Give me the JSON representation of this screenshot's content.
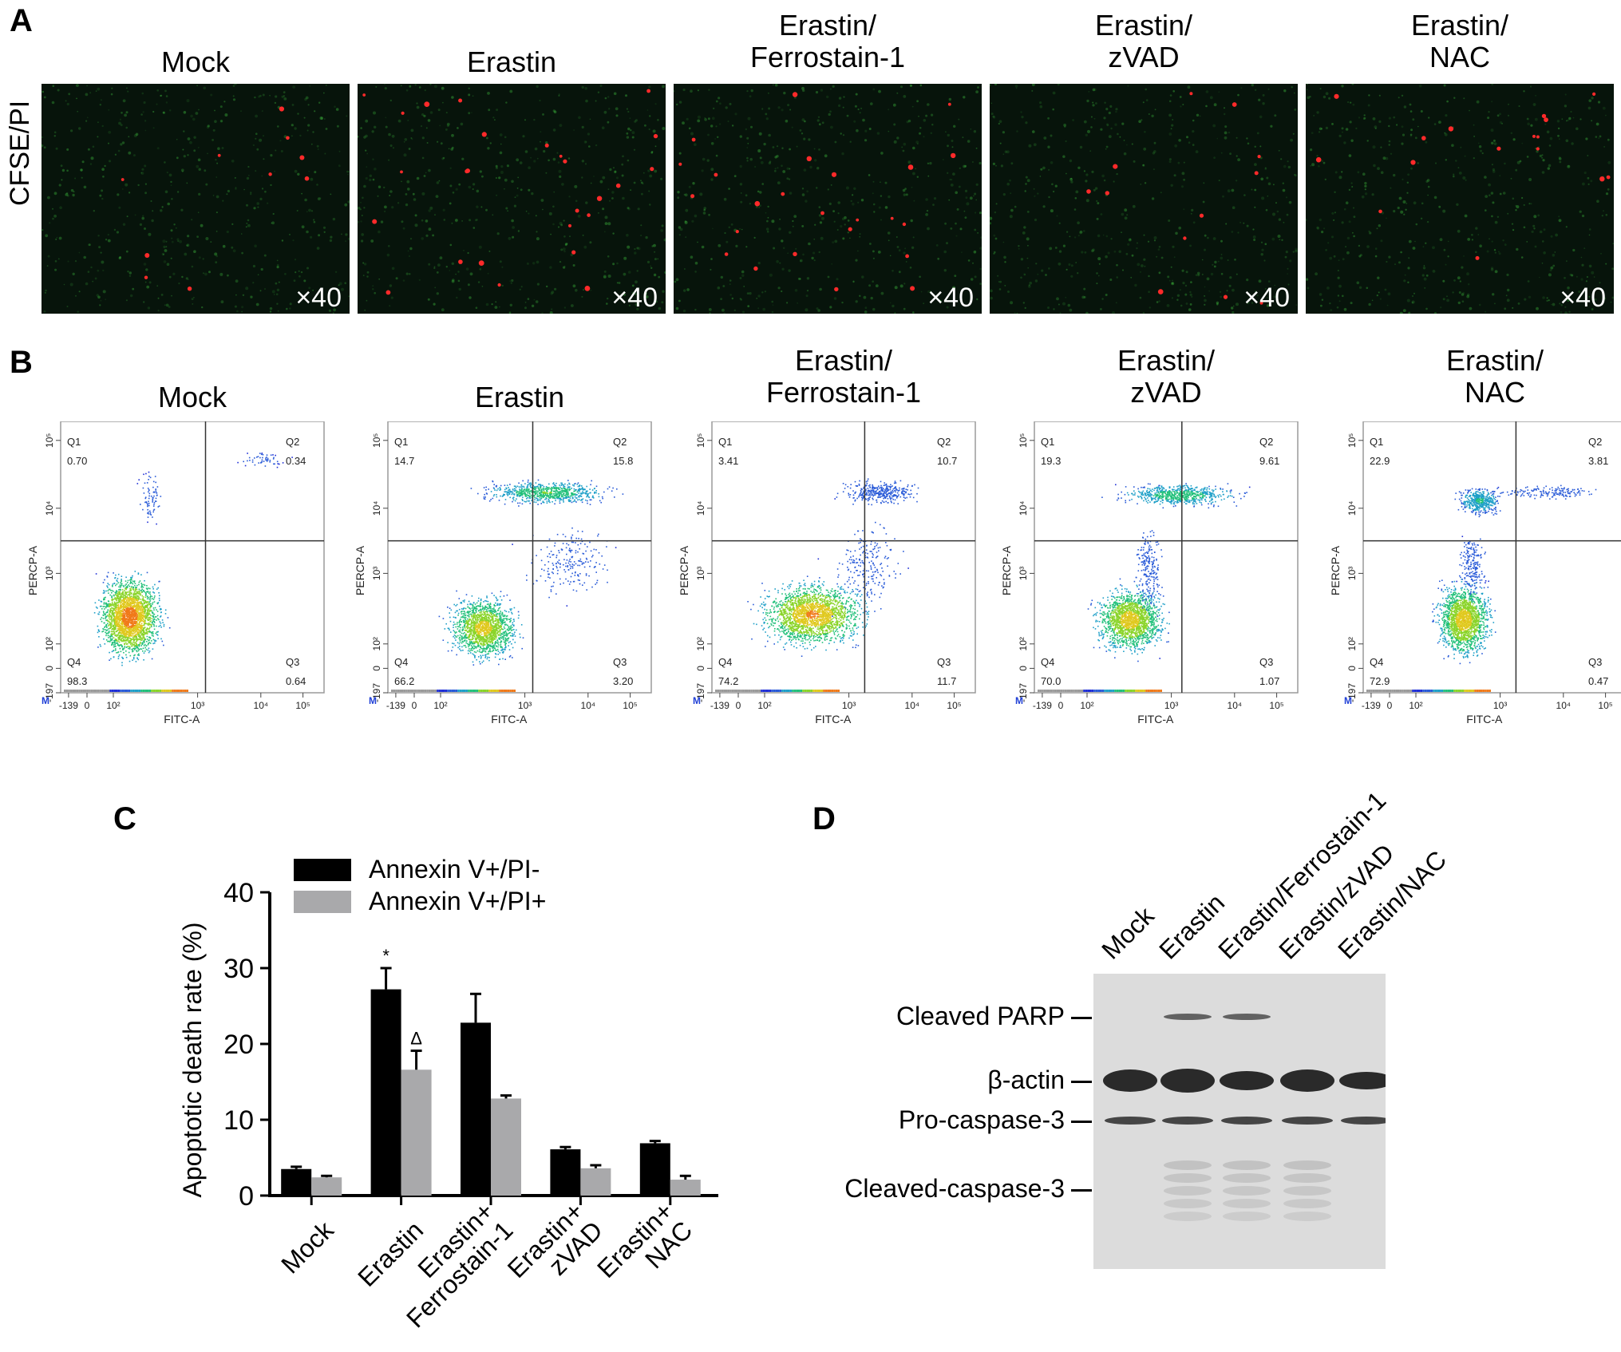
{
  "panels": {
    "a": {
      "letter": "A",
      "ylabel": "CFSE/PI",
      "magnification": "×40",
      "conditions": [
        {
          "title_lines": [
            "Mock"
          ]
        },
        {
          "title_lines": [
            "Erastin"
          ]
        },
        {
          "title_lines": [
            "Erastin/",
            "Ferrostain-1"
          ]
        },
        {
          "title_lines": [
            "Erastin/",
            "zVAD"
          ]
        },
        {
          "title_lines": [
            "Erastin/",
            "NAC"
          ]
        }
      ],
      "colors": {
        "background": "#07140b",
        "pi": "#ff2a2a",
        "cfse": "#3fbf3f"
      }
    },
    "b": {
      "letter": "B",
      "xaxis_label": "FITC-A",
      "yaxis_label": "PERCP-A",
      "x_ticks": [
        "-139",
        "0",
        "10²",
        "10³",
        "10⁴",
        "10⁵"
      ],
      "y_ticks": [
        "-197",
        "0",
        "10²",
        "10³",
        "10⁴",
        "10⁵"
      ],
      "plots": [
        {
          "title_lines": [
            "Mock"
          ],
          "quadrants": {
            "Q1": "0.70",
            "Q2": "0.34",
            "Q3": "0.64",
            "Q4": "98.3"
          }
        },
        {
          "title_lines": [
            "Erastin"
          ],
          "quadrants": {
            "Q1": "14.7",
            "Q2": "15.8",
            "Q3": "3.20",
            "Q4": "66.2"
          }
        },
        {
          "title_lines": [
            "Erastin/",
            "Ferrostain-1"
          ],
          "quadrants": {
            "Q1": "3.41",
            "Q2": "10.7",
            "Q3": "11.7",
            "Q4": "74.2"
          }
        },
        {
          "title_lines": [
            "Erastin/",
            "zVAD"
          ],
          "quadrants": {
            "Q1": "19.3",
            "Q2": "9.61",
            "Q3": "1.07",
            "Q4": "70.0"
          }
        },
        {
          "title_lines": [
            "Erastin/",
            "NAC"
          ],
          "quadrants": {
            "Q1": "22.9",
            "Q2": "3.81",
            "Q3": "0.47",
            "Q4": "72.9"
          }
        }
      ],
      "quadrant_names": [
        "Q1",
        "Q2",
        "Q3",
        "Q4"
      ],
      "marker": "M"
    },
    "c": {
      "letter": "C",
      "chart_data": {
        "type": "bar",
        "categories": [
          "Mock",
          "Erastin",
          "Erastin+ Ferrostain-1",
          "Erastin+ zVAD",
          "Erastin+ NAC"
        ],
        "category_lines": [
          [
            "Mock"
          ],
          [
            "Erastin"
          ],
          [
            "Erastin+",
            "Ferrostain-1"
          ],
          [
            "Erastin+",
            "zVAD"
          ],
          [
            "Erastin+",
            "NAC"
          ]
        ],
        "series": [
          {
            "name": "Annexin V+/PI-",
            "values": [
              3.5,
              27.2,
              22.8,
              6.1,
              6.9
            ],
            "errors": [
              0.3,
              2.8,
              3.8,
              0.3,
              0.3
            ],
            "color": "#000000",
            "markers": [
              "",
              "*",
              "",
              "",
              ""
            ]
          },
          {
            "name": "Annexin V+/PI+",
            "values": [
              2.4,
              16.6,
              12.8,
              3.6,
              2.1
            ],
            "errors": [
              0.2,
              2.5,
              0.4,
              0.4,
              0.5
            ],
            "color": "#a9a9ab",
            "markers": [
              "",
              "Δ",
              "",
              "",
              ""
            ]
          }
        ],
        "ylabel": "Apoptotic death rate (%)",
        "ylim": [
          0,
          40
        ],
        "yticks": [
          0,
          10,
          20,
          30,
          40
        ],
        "legend": "top"
      }
    },
    "d": {
      "letter": "D",
      "lanes": [
        "Mock",
        "Erastin",
        "Erastin/Ferrostain-1",
        "Erastin/zVAD",
        "Erastin/NAC"
      ],
      "bands": [
        "Cleaved PARP",
        "β-actin",
        "Pro-caspase-3",
        "Cleaved-caspase-3"
      ]
    }
  }
}
